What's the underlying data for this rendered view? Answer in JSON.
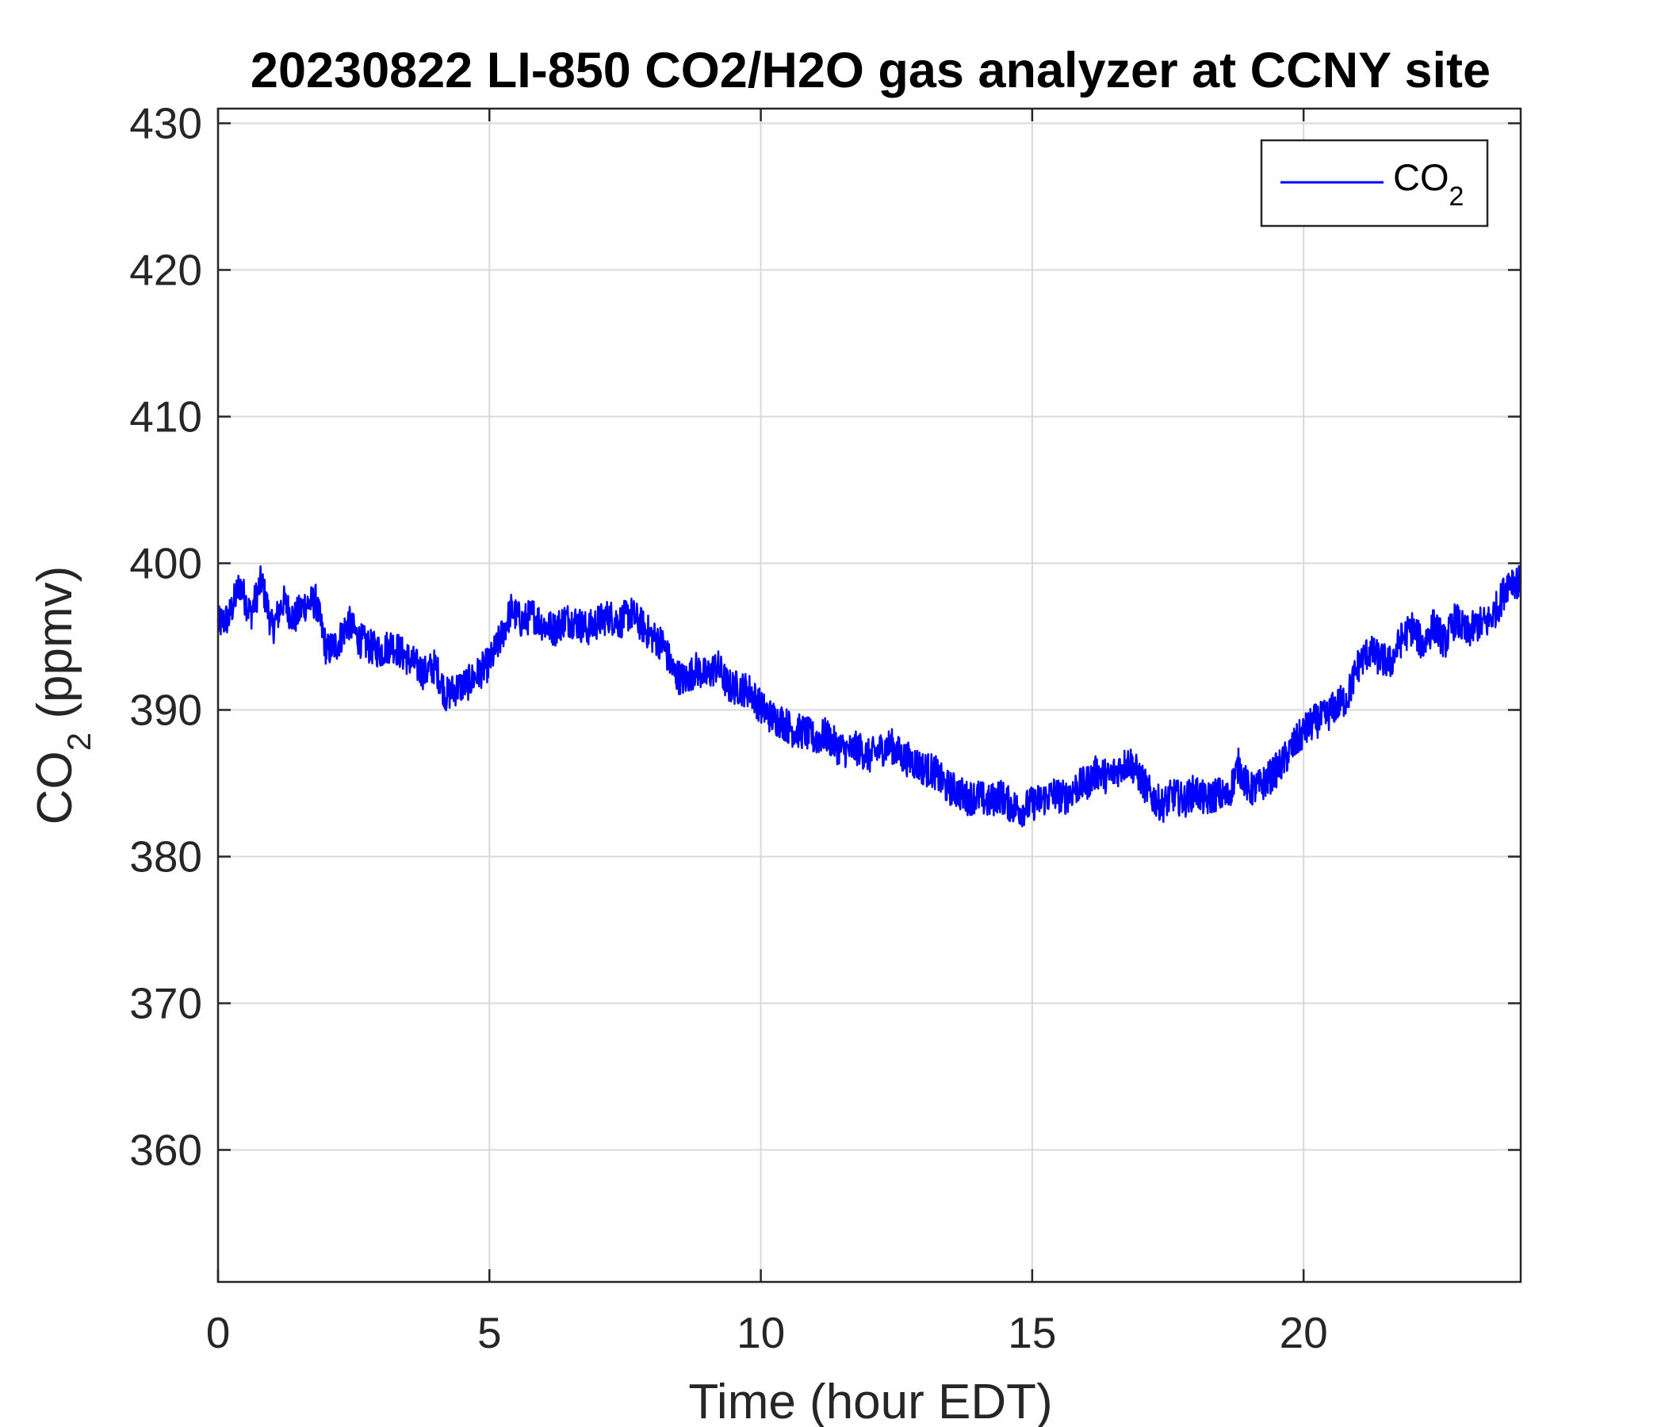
{
  "chart_data": {
    "type": "line",
    "title": "20230822 LI-850 CO2/H2O gas analyzer at CCNY site",
    "xlabel": "Time (hour EDT)",
    "ylabel": {
      "main": "CO",
      "sub": "2",
      "rest": " (ppmv)"
    },
    "xlim": [
      0,
      24
    ],
    "ylim": [
      351,
      431
    ],
    "xticks": [
      0,
      5,
      10,
      15,
      20
    ],
    "yticks": [
      360,
      370,
      380,
      390,
      400,
      410,
      420,
      430
    ],
    "grid": true,
    "legend_position": "top-right",
    "colors": {
      "series": "#0000ff",
      "grid": "#d9d9d9",
      "axis": "#262626"
    },
    "series": [
      {
        "legend": {
          "main": "CO",
          "sub": "2"
        },
        "x": [
          0,
          0.2,
          0.4,
          0.6,
          0.8,
          1.0,
          1.2,
          1.4,
          1.6,
          1.8,
          2.0,
          2.2,
          2.4,
          2.6,
          2.8,
          3.0,
          3.2,
          3.4,
          3.6,
          3.8,
          4.0,
          4.2,
          4.4,
          4.6,
          4.8,
          5.0,
          5.2,
          5.4,
          5.6,
          5.8,
          6.0,
          6.2,
          6.4,
          6.6,
          6.8,
          7.0,
          7.2,
          7.4,
          7.6,
          7.8,
          8.0,
          8.2,
          8.4,
          8.6,
          8.8,
          9.0,
          9.2,
          9.4,
          9.6,
          9.8,
          10.0,
          10.2,
          10.4,
          10.6,
          10.8,
          11.0,
          11.2,
          11.4,
          11.6,
          11.8,
          12.0,
          12.2,
          12.4,
          12.6,
          12.8,
          13.0,
          13.2,
          13.4,
          13.6,
          13.8,
          14.0,
          14.2,
          14.4,
          14.6,
          14.8,
          15.0,
          15.2,
          15.4,
          15.6,
          15.8,
          16.0,
          16.2,
          16.4,
          16.6,
          16.8,
          17.0,
          17.2,
          17.4,
          17.6,
          17.8,
          18.0,
          18.2,
          18.4,
          18.6,
          18.8,
          19.0,
          19.2,
          19.4,
          19.6,
          19.8,
          20.0,
          20.2,
          20.4,
          20.6,
          20.8,
          21.0,
          21.2,
          21.4,
          21.6,
          21.8,
          22.0,
          22.2,
          22.4,
          22.6,
          22.8,
          23.0,
          23.2,
          23.4,
          23.6,
          23.8,
          24.0
        ],
        "y": [
          395.8,
          396.3,
          398.6,
          396.5,
          398.8,
          395.5,
          397.4,
          396.2,
          397.2,
          397.4,
          394.0,
          394.5,
          396.0,
          394.8,
          394.3,
          394.0,
          394.5,
          393.8,
          393.2,
          392.5,
          393.0,
          391.0,
          391.5,
          391.8,
          392.5,
          393.2,
          394.8,
          396.8,
          396.0,
          396.5,
          395.8,
          395.5,
          396.2,
          396.0,
          395.5,
          396.0,
          396.4,
          396.0,
          396.6,
          395.8,
          395.0,
          394.5,
          392.5,
          392.0,
          392.8,
          392.3,
          393.0,
          391.6,
          391.5,
          391.3,
          390.2,
          389.5,
          389.2,
          388.6,
          388.5,
          388.0,
          388.3,
          387.5,
          387.2,
          387.4,
          386.8,
          387.3,
          387.6,
          386.8,
          386.5,
          386.0,
          385.8,
          384.8,
          384.5,
          384.0,
          384.1,
          383.7,
          384.2,
          383.5,
          383.2,
          383.6,
          383.9,
          384.3,
          384.0,
          384.7,
          385.0,
          385.8,
          385.4,
          386.0,
          386.5,
          385.3,
          384.1,
          383.5,
          384.2,
          383.8,
          384.5,
          383.8,
          384.3,
          384.0,
          386.2,
          384.5,
          384.8,
          385.5,
          386.3,
          387.5,
          388.5,
          389.2,
          389.5,
          390.3,
          390.8,
          393.0,
          394.0,
          393.5,
          393.2,
          394.8,
          395.6,
          394.4,
          395.8,
          394.6,
          396.2,
          395.2,
          395.8,
          396.0,
          397.2,
          399.0,
          398.6
        ]
      }
    ]
  }
}
